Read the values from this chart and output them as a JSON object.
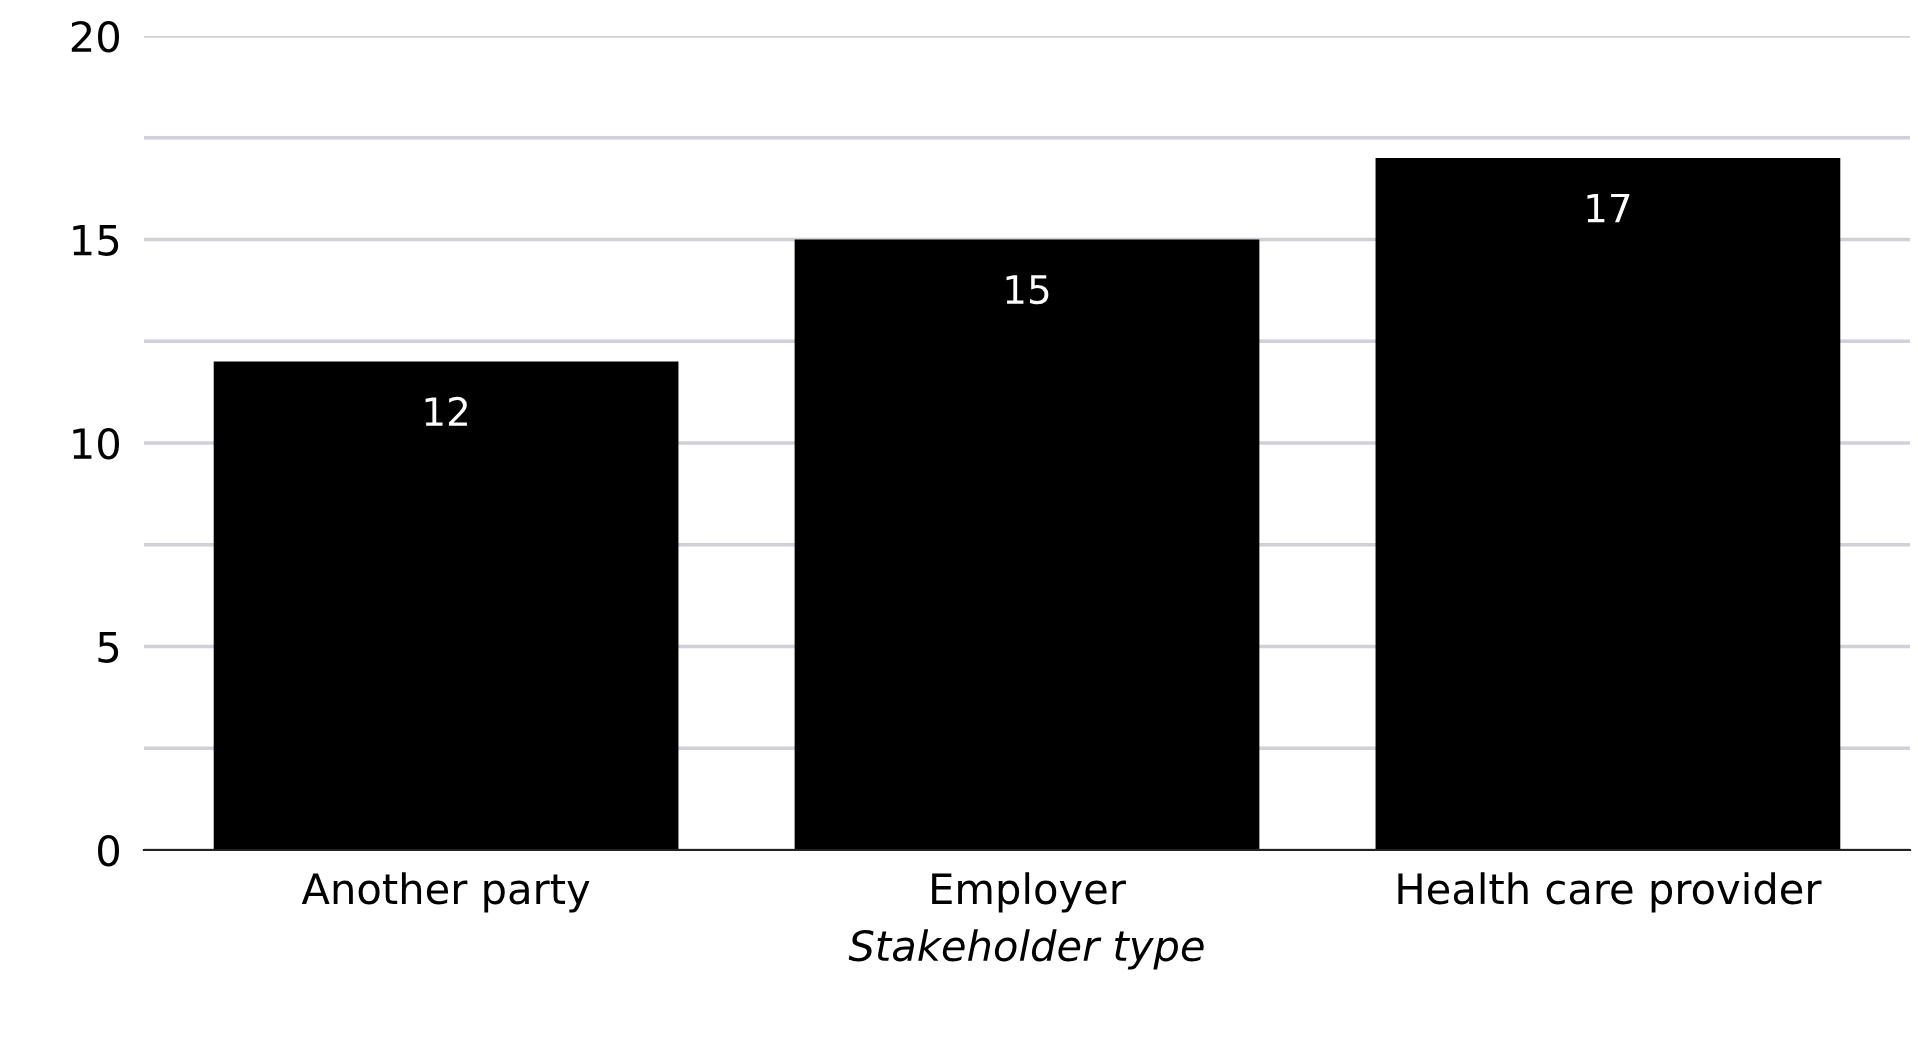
{
  "chart_data": {
    "type": "bar",
    "xlabel": "Stakeholder type",
    "categories": [
      "Another party",
      "Employer",
      "Health care provider"
    ],
    "values": [
      12,
      15,
      17
    ],
    "color": "#000000",
    "ylim": [
      0,
      20
    ],
    "yticks": [
      0,
      {
        "value": 2.5,
        "label": null
      },
      5,
      {
        "value": 7.5,
        "label": null
      },
      10,
      {
        "value": 12.5,
        "label": null
      },
      15,
      {
        "value": 17.5,
        "label": null
      },
      20
    ],
    "grid": "y",
    "data_labels": true
  }
}
